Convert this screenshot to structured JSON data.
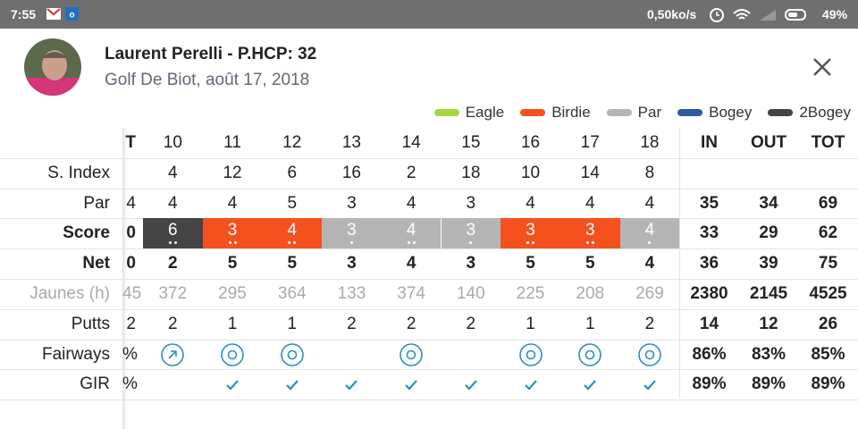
{
  "status_bar": {
    "time": "7:55",
    "speed": "0,50ko/s",
    "battery": "49%"
  },
  "header": {
    "name": "Laurent Perelli - P.HCP: 32",
    "subtitle": "Golf De Biot, août 17, 2018"
  },
  "legend": [
    {
      "label": "Eagle",
      "color": "#a6d83c"
    },
    {
      "label": "Birdie",
      "color": "#f4511e"
    },
    {
      "label": "Par",
      "color": "#b5b5b5"
    },
    {
      "label": "Bogey",
      "color": "#2f5aa0"
    },
    {
      "label": "2Bogey",
      "color": "#444444"
    }
  ],
  "table": {
    "header": {
      "left": "T",
      "holes": [
        10,
        11,
        12,
        13,
        14,
        15,
        16,
        17,
        18
      ],
      "totals": [
        "IN",
        "OUT",
        "TOT"
      ]
    },
    "rows": [
      {
        "label": "S. Index",
        "holes": [
          4,
          12,
          6,
          16,
          2,
          18,
          10,
          14,
          8
        ]
      },
      {
        "label": "Par",
        "left": "4",
        "holes": [
          4,
          4,
          5,
          3,
          4,
          3,
          4,
          4,
          4
        ],
        "totals": [
          35,
          34,
          69
        ]
      },
      {
        "label": "Score",
        "left": "0",
        "holes": [
          6,
          3,
          4,
          3,
          4,
          3,
          3,
          3,
          4
        ],
        "totals": [
          33,
          29,
          62
        ]
      },
      {
        "label": "Net",
        "left": "0",
        "holes": [
          2,
          5,
          5,
          3,
          4,
          3,
          5,
          5,
          4
        ],
        "totals": [
          36,
          39,
          75
        ]
      },
      {
        "label": "Jaunes (h)",
        "left": "45",
        "holes": [
          372,
          295,
          364,
          133,
          374,
          140,
          225,
          208,
          269
        ],
        "totals": [
          2380,
          2145,
          4525
        ]
      },
      {
        "label": "Putts",
        "left": "2",
        "holes": [
          2,
          1,
          1,
          2,
          2,
          2,
          1,
          1,
          2
        ],
        "totals": [
          14,
          12,
          26
        ]
      },
      {
        "label": "Fairways",
        "left": "%",
        "icons": [
          "right",
          "hit",
          "hit",
          null,
          "hit",
          null,
          "hit",
          "hit",
          "hit"
        ],
        "totals": [
          "86%",
          "83%",
          "85%"
        ]
      },
      {
        "label": "GIR",
        "left": "%",
        "icons": [
          null,
          "check",
          "check",
          "check",
          "check",
          "check",
          "check",
          "check",
          "check"
        ],
        "totals": [
          "89%",
          "89%",
          "89%"
        ]
      }
    ],
    "score_results": [
      4,
      1,
      1,
      2,
      2,
      2,
      1,
      1,
      2
    ],
    "strokes_received": [
      2,
      2,
      2,
      1,
      2,
      1,
      2,
      2,
      1
    ]
  }
}
